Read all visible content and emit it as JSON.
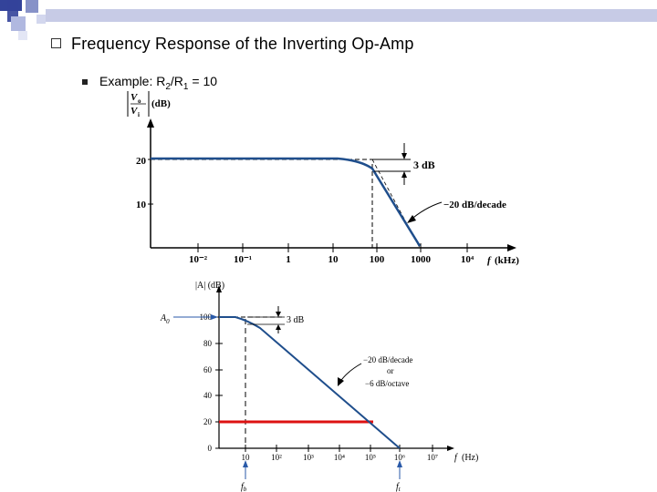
{
  "slide": {
    "title": "Frequency Response of the Inverting Op-Amp",
    "example": {
      "prefix": "Example: R",
      "sub1": "2",
      "mid": "/R",
      "sub2": "1",
      "suffix": " = 10"
    }
  },
  "colors": {
    "curve": "#1f4e8c",
    "highlight": "#dd1111",
    "decor_blue": "#2f3f8f"
  },
  "chart_data": [
    {
      "type": "line",
      "title": "",
      "ylabel": "|Vo/Vi| (dB)",
      "xlabel": "f (kHz)",
      "ylim": [
        0,
        25
      ],
      "y_ticks": [
        "20",
        "10"
      ],
      "x_ticks": [
        "10⁻²",
        "10⁻¹",
        "1",
        "10",
        "100",
        "1000",
        "10⁴"
      ],
      "x_log": true,
      "series": [
        {
          "x": [
            0.003,
            10,
            60,
            100,
            200,
            1000
          ],
          "y": [
            20,
            20,
            19.5,
            17,
            13,
            0
          ]
        }
      ],
      "annotations": [
        "3 dB",
        "−20 dB/decade"
      ],
      "grid": false
    },
    {
      "type": "line",
      "title": "",
      "ylabel": "|A| (dB)",
      "xlabel": "f (Hz)",
      "ylim": [
        0,
        110
      ],
      "y_ticks": [
        "100",
        "80",
        "60",
        "40",
        "20",
        "0"
      ],
      "x_ticks": [
        "10",
        "10²",
        "10³",
        "10⁴",
        "10⁵",
        "10⁶",
        "10⁷"
      ],
      "x_log": true,
      "series": [
        {
          "x": [
            1,
            5,
            10,
            20,
            100,
            1000,
            10000,
            100000,
            1000000
          ],
          "y": [
            100,
            100,
            97,
            94,
            80,
            60,
            40,
            20,
            0
          ]
        }
      ],
      "highlight_line": {
        "y": 20,
        "x_from": 1,
        "x_to": 100000
      },
      "annotations": [
        "3 dB",
        "−20 dB/decade",
        "or",
        "−6 dB/octave"
      ],
      "markers": [
        "A₀",
        "f_b",
        "f_t"
      ],
      "grid": false
    }
  ]
}
